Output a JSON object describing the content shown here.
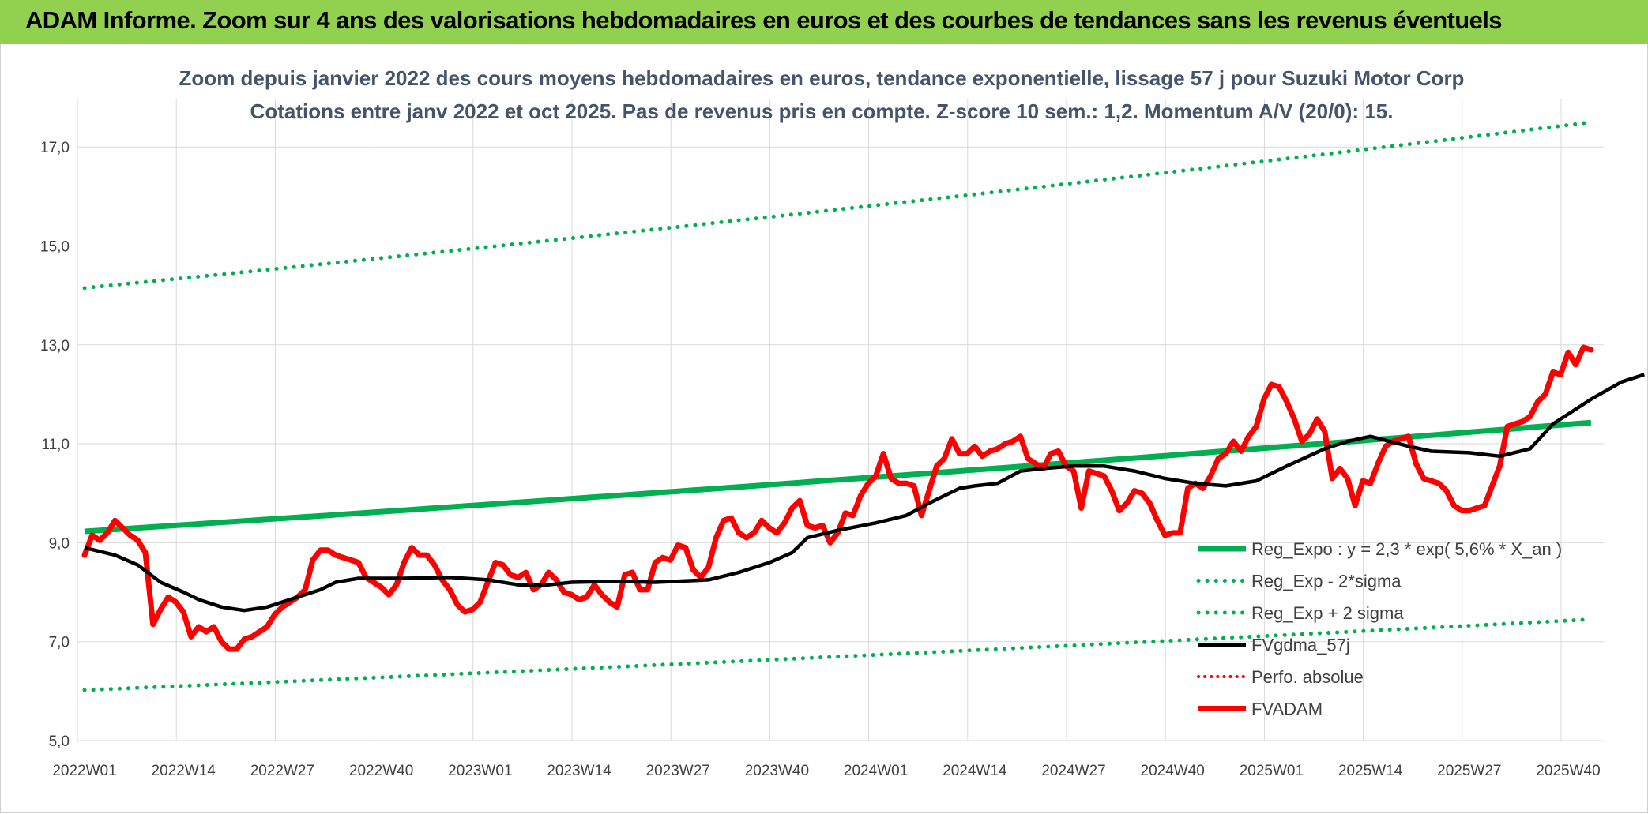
{
  "banner": {
    "title": "ADAM Informe. Zoom sur 4 ans des valorisations hebdomadaires en euros et des courbes de tendances sans les revenus éventuels"
  },
  "colors": {
    "banner": "#92d050",
    "reg": "#00b050",
    "fvgdma": "#000000",
    "fvadam": "#ff0000"
  },
  "chart_data": {
    "type": "line",
    "title": "Zoom depuis janvier 2022 des cours moyens hebdomadaires en euros, tendance exponentielle, lissage 57 j pour Suzuki Motor Corp",
    "subtitle": "Cotations entre janv 2022 et oct 2025. Pas de revenus pris en compte. Z-score 10 sem.: 1,2. Momentum A/V (20/0): 15.",
    "ylim": [
      5,
      17.8
    ],
    "yticks": [
      "5,0",
      "7,0",
      "9,0",
      "11,0",
      "13,0",
      "15,0",
      "17,0"
    ],
    "xtick_labels": [
      "2022W01",
      "2022W14",
      "2022W27",
      "2022W40",
      "2023W01",
      "2023W14",
      "2023W27",
      "2023W40",
      "2024W01",
      "2024W14",
      "2024W27",
      "2024W40",
      "2025W01",
      "2025W14",
      "2025W27",
      "2025W40"
    ],
    "n_weeks": 196,
    "series": [
      {
        "name": "Reg_Expo : y = 2,3 * exp( 5,6% *  X_an )",
        "style": "solid-thick-green",
        "start": 9.23,
        "end": 11.43
      },
      {
        "name": "Reg_Exp - 2*sigma",
        "style": "dotted-green",
        "start": 6.02,
        "end": 7.45
      },
      {
        "name": "Reg_Exp + 2 sigma",
        "style": "dotted-green",
        "start": 14.15,
        "end": 17.5
      },
      {
        "name": "FVgdma_57j",
        "style": "solid-black",
        "points": [
          [
            0,
            8.9
          ],
          [
            4,
            8.75
          ],
          [
            7,
            8.55
          ],
          [
            10,
            8.2
          ],
          [
            13,
            8.0
          ],
          [
            15,
            7.85
          ],
          [
            18,
            7.7
          ],
          [
            21,
            7.63
          ],
          [
            24,
            7.7
          ],
          [
            27,
            7.85
          ],
          [
            31,
            8.05
          ],
          [
            33,
            8.2
          ],
          [
            36,
            8.28
          ],
          [
            42,
            8.28
          ],
          [
            48,
            8.3
          ],
          [
            53,
            8.25
          ],
          [
            57,
            8.15
          ],
          [
            61,
            8.15
          ],
          [
            64,
            8.2
          ],
          [
            70,
            8.22
          ],
          [
            75,
            8.2
          ],
          [
            82,
            8.25
          ],
          [
            86,
            8.4
          ],
          [
            90,
            8.6
          ],
          [
            93,
            8.8
          ],
          [
            95,
            9.1
          ],
          [
            99,
            9.25
          ],
          [
            104,
            9.4
          ],
          [
            108,
            9.55
          ],
          [
            111,
            9.8
          ],
          [
            115,
            10.1
          ],
          [
            117,
            10.15
          ],
          [
            120,
            10.2
          ],
          [
            123,
            10.45
          ],
          [
            126,
            10.5
          ],
          [
            130,
            10.55
          ],
          [
            134,
            10.55
          ],
          [
            138,
            10.45
          ],
          [
            142,
            10.3
          ],
          [
            146,
            10.2
          ],
          [
            150,
            10.15
          ],
          [
            154,
            10.25
          ],
          [
            158,
            10.55
          ],
          [
            163,
            10.9
          ],
          [
            166,
            11.05
          ],
          [
            169,
            11.15
          ],
          [
            174,
            10.95
          ],
          [
            177,
            10.85
          ],
          [
            182,
            10.82
          ],
          [
            186,
            10.75
          ],
          [
            190,
            10.9
          ],
          [
            193,
            11.4
          ],
          [
            198,
            11.9
          ],
          [
            202,
            12.25
          ],
          [
            205,
            12.4
          ]
        ]
      },
      {
        "name": "Perfo. absolue",
        "style": "dotted-red",
        "points": []
      },
      {
        "name": "FVADAM",
        "style": "solid-thick-red",
        "points": [
          [
            0,
            8.75
          ],
          [
            1,
            9.15
          ],
          [
            2,
            9.05
          ],
          [
            3,
            9.2
          ],
          [
            4,
            9.45
          ],
          [
            5,
            9.3
          ],
          [
            6,
            9.15
          ],
          [
            7,
            9.05
          ],
          [
            8,
            8.8
          ],
          [
            9,
            7.35
          ],
          [
            10,
            7.65
          ],
          [
            11,
            7.9
          ],
          [
            12,
            7.8
          ],
          [
            13,
            7.6
          ],
          [
            14,
            7.1
          ],
          [
            15,
            7.3
          ],
          [
            16,
            7.2
          ],
          [
            17,
            7.3
          ],
          [
            18,
            7.0
          ],
          [
            19,
            6.85
          ],
          [
            20,
            6.85
          ],
          [
            21,
            7.05
          ],
          [
            22,
            7.1
          ],
          [
            23,
            7.2
          ],
          [
            24,
            7.3
          ],
          [
            25,
            7.55
          ],
          [
            26,
            7.7
          ],
          [
            27,
            7.8
          ],
          [
            28,
            7.9
          ],
          [
            29,
            8.05
          ],
          [
            30,
            8.65
          ],
          [
            31,
            8.85
          ],
          [
            32,
            8.85
          ],
          [
            33,
            8.75
          ],
          [
            34,
            8.7
          ],
          [
            35,
            8.65
          ],
          [
            36,
            8.6
          ],
          [
            37,
            8.3
          ],
          [
            38,
            8.2
          ],
          [
            39,
            8.1
          ],
          [
            40,
            7.95
          ],
          [
            41,
            8.15
          ],
          [
            42,
            8.6
          ],
          [
            43,
            8.9
          ],
          [
            44,
            8.75
          ],
          [
            45,
            8.75
          ],
          [
            46,
            8.55
          ],
          [
            47,
            8.25
          ],
          [
            48,
            8.05
          ],
          [
            49,
            7.75
          ],
          [
            50,
            7.6
          ],
          [
            51,
            7.65
          ],
          [
            52,
            7.8
          ],
          [
            53,
            8.2
          ],
          [
            54,
            8.6
          ],
          [
            55,
            8.55
          ],
          [
            56,
            8.35
          ],
          [
            57,
            8.3
          ],
          [
            58,
            8.4
          ],
          [
            59,
            8.05
          ],
          [
            60,
            8.15
          ],
          [
            61,
            8.4
          ],
          [
            62,
            8.25
          ],
          [
            63,
            8.0
          ],
          [
            64,
            7.95
          ],
          [
            65,
            7.85
          ],
          [
            66,
            7.9
          ],
          [
            67,
            8.15
          ],
          [
            68,
            7.95
          ],
          [
            69,
            7.8
          ],
          [
            70,
            7.7
          ],
          [
            71,
            8.35
          ],
          [
            72,
            8.4
          ],
          [
            73,
            8.05
          ],
          [
            74,
            8.05
          ],
          [
            75,
            8.6
          ],
          [
            76,
            8.7
          ],
          [
            77,
            8.65
          ],
          [
            78,
            8.95
          ],
          [
            79,
            8.9
          ],
          [
            80,
            8.45
          ],
          [
            81,
            8.3
          ],
          [
            82,
            8.5
          ],
          [
            83,
            9.1
          ],
          [
            84,
            9.45
          ],
          [
            85,
            9.5
          ],
          [
            86,
            9.2
          ],
          [
            87,
            9.1
          ],
          [
            88,
            9.2
          ],
          [
            89,
            9.45
          ],
          [
            90,
            9.3
          ],
          [
            91,
            9.2
          ],
          [
            92,
            9.4
          ],
          [
            93,
            9.7
          ],
          [
            94,
            9.85
          ],
          [
            95,
            9.35
          ],
          [
            96,
            9.3
          ],
          [
            97,
            9.35
          ],
          [
            98,
            9.0
          ],
          [
            99,
            9.2
          ],
          [
            100,
            9.6
          ],
          [
            101,
            9.55
          ],
          [
            102,
            9.95
          ],
          [
            103,
            10.2
          ],
          [
            104,
            10.35
          ],
          [
            105,
            10.8
          ],
          [
            106,
            10.3
          ],
          [
            107,
            10.2
          ],
          [
            108,
            10.2
          ],
          [
            109,
            10.15
          ],
          [
            110,
            9.55
          ],
          [
            111,
            10.05
          ],
          [
            112,
            10.55
          ],
          [
            113,
            10.7
          ],
          [
            114,
            11.1
          ],
          [
            115,
            10.8
          ],
          [
            116,
            10.8
          ],
          [
            117,
            10.95
          ],
          [
            118,
            10.75
          ],
          [
            119,
            10.85
          ],
          [
            120,
            10.9
          ],
          [
            121,
            11.0
          ],
          [
            122,
            11.05
          ],
          [
            123,
            11.15
          ],
          [
            124,
            10.7
          ],
          [
            125,
            10.6
          ],
          [
            126,
            10.5
          ],
          [
            127,
            10.8
          ],
          [
            128,
            10.85
          ],
          [
            129,
            10.55
          ],
          [
            130,
            10.45
          ],
          [
            131,
            9.7
          ],
          [
            132,
            10.45
          ],
          [
            133,
            10.4
          ],
          [
            134,
            10.35
          ],
          [
            135,
            10.05
          ],
          [
            136,
            9.65
          ],
          [
            137,
            9.8
          ],
          [
            138,
            10.05
          ],
          [
            139,
            10.0
          ],
          [
            140,
            9.8
          ],
          [
            141,
            9.45
          ],
          [
            142,
            9.15
          ],
          [
            143,
            9.2
          ],
          [
            144,
            9.2
          ],
          [
            145,
            10.1
          ],
          [
            146,
            10.2
          ],
          [
            147,
            10.1
          ],
          [
            148,
            10.35
          ],
          [
            149,
            10.7
          ],
          [
            150,
            10.8
          ],
          [
            151,
            11.05
          ],
          [
            152,
            10.85
          ],
          [
            153,
            11.15
          ],
          [
            154,
            11.35
          ],
          [
            155,
            11.9
          ],
          [
            156,
            12.2
          ],
          [
            157,
            12.15
          ],
          [
            158,
            11.85
          ],
          [
            159,
            11.5
          ],
          [
            160,
            11.05
          ],
          [
            161,
            11.2
          ],
          [
            162,
            11.5
          ],
          [
            163,
            11.25
          ],
          [
            164,
            10.3
          ],
          [
            165,
            10.5
          ],
          [
            166,
            10.3
          ],
          [
            167,
            9.75
          ],
          [
            168,
            10.25
          ],
          [
            169,
            10.2
          ],
          [
            170,
            10.6
          ],
          [
            171,
            10.95
          ],
          [
            172,
            11.05
          ],
          [
            173,
            11.1
          ],
          [
            174,
            11.15
          ],
          [
            175,
            10.6
          ],
          [
            176,
            10.3
          ],
          [
            177,
            10.25
          ],
          [
            178,
            10.2
          ],
          [
            179,
            10.05
          ],
          [
            180,
            9.75
          ],
          [
            181,
            9.65
          ],
          [
            182,
            9.65
          ],
          [
            183,
            9.7
          ],
          [
            184,
            9.75
          ],
          [
            185,
            10.15
          ],
          [
            186,
            10.55
          ],
          [
            187,
            11.35
          ],
          [
            188,
            11.4
          ],
          [
            189,
            11.45
          ],
          [
            190,
            11.55
          ],
          [
            191,
            11.85
          ],
          [
            192,
            12.0
          ],
          [
            193,
            12.45
          ],
          [
            194,
            12.4
          ],
          [
            195,
            12.85
          ],
          [
            196,
            12.6
          ],
          [
            197,
            12.95
          ],
          [
            198,
            12.9
          ]
        ]
      }
    ]
  }
}
